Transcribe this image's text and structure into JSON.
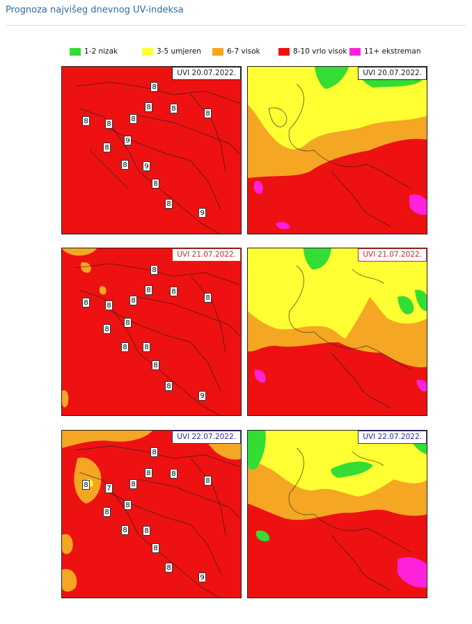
{
  "page": {
    "title": "Prognoza najvišeg dnevnog UV-indeksa"
  },
  "legend": [
    {
      "label": "1-2 nizak",
      "color": "#33dd33"
    },
    {
      "label": "3-5 umjeren",
      "color": "#ffff33"
    },
    {
      "label": "6-7 visok",
      "color": "#f5a623"
    },
    {
      "label": "8-10 vrlo visok",
      "color": "#ee1111"
    },
    {
      "label": "11+ ekstreman",
      "color": "#ff22dd"
    }
  ],
  "colors": {
    "low": "#33dd33",
    "moderate": "#ffff33",
    "high": "#f5a623",
    "very_high": "#ee1111",
    "extreme": "#ff22dd"
  },
  "days": [
    {
      "date_label": "UVI  20.07.2022.",
      "date_color": "#222222",
      "croatia_values": [
        "8",
        "8",
        "8",
        "8",
        "8",
        "8",
        "8",
        "9",
        "8",
        "8",
        "9",
        "8",
        "8",
        "9"
      ]
    },
    {
      "date_label": "UVI  21.07.2022.",
      "date_color": "#e02020",
      "croatia_values": [
        "8",
        "8",
        "8",
        "8",
        "8",
        "8",
        "8",
        "8",
        "8",
        "8",
        "8",
        "8",
        "8",
        "9"
      ]
    },
    {
      "date_label": "UVI  22.07.2022.",
      "date_color": "#2a2aa8",
      "croatia_values": [
        "8",
        "8",
        "8",
        "8",
        "8",
        "7",
        "8",
        "8",
        "8",
        "8",
        "8",
        "8",
        "8",
        "9"
      ]
    }
  ]
}
